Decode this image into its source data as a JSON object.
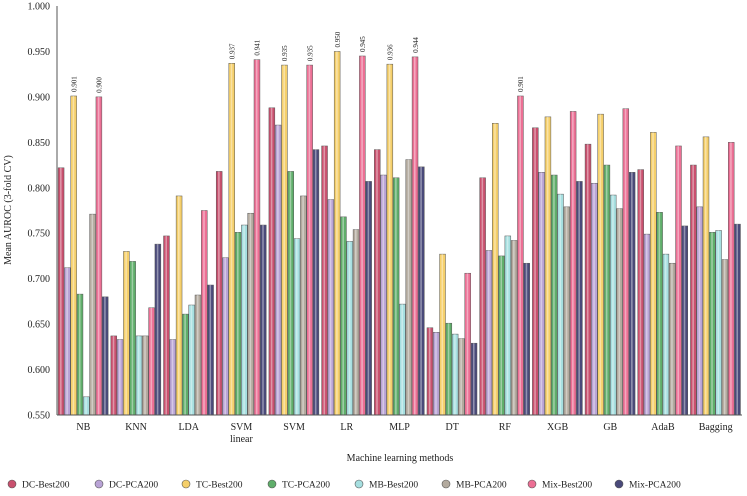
{
  "chart_data": {
    "type": "bar",
    "title": "",
    "xlabel": "Machine learning methods",
    "ylabel": "Mean AUROC (3-fold CV)",
    "ylim": [
      0.55,
      1.0
    ],
    "yticks": [
      "0.550",
      "0.600",
      "0.650",
      "0.700",
      "0.750",
      "0.800",
      "0.850",
      "0.900",
      "0.950",
      "1.000"
    ],
    "grid": false,
    "legend_position": "bottom",
    "categories": [
      [
        "NB"
      ],
      [
        "KNN"
      ],
      [
        "LDA"
      ],
      [
        "SVM",
        "linear"
      ],
      [
        "SVM"
      ],
      [
        "LR"
      ],
      [
        "MLP"
      ],
      [
        "DT"
      ],
      [
        "RF"
      ],
      [
        "XGB"
      ],
      [
        "GB"
      ],
      [
        "AdaB"
      ],
      [
        "Bagging"
      ]
    ],
    "data_label_threshold": 0.9,
    "series": [
      {
        "name": "DC-Best200",
        "color": "#c9506e",
        "values": [
          0.822,
          0.637,
          0.747,
          0.818,
          0.888,
          0.846,
          0.842,
          0.646,
          0.811,
          0.866,
          0.848,
          0.82,
          0.825
        ]
      },
      {
        "name": "DC-PCA200",
        "color": "#b9a3d6",
        "values": [
          0.712,
          0.633,
          0.633,
          0.723,
          0.869,
          0.787,
          0.814,
          0.641,
          0.731,
          0.817,
          0.805,
          0.749,
          0.779
        ]
      },
      {
        "name": "TC-Best200",
        "color": "#f5cf6a",
        "values": [
          0.901,
          0.73,
          0.791,
          0.937,
          0.935,
          0.95,
          0.936,
          0.727,
          0.871,
          0.878,
          0.881,
          0.861,
          0.856
        ]
      },
      {
        "name": "TC-PCA200",
        "color": "#5fae6a",
        "values": [
          0.683,
          0.719,
          0.661,
          0.751,
          0.818,
          0.768,
          0.811,
          0.651,
          0.725,
          0.814,
          0.825,
          0.773,
          0.751
        ]
      },
      {
        "name": "MB-Best200",
        "color": "#a6dfe0",
        "values": [
          0.57,
          0.637,
          0.671,
          0.759,
          0.744,
          0.741,
          0.672,
          0.639,
          0.747,
          0.793,
          0.792,
          0.727,
          0.753
        ]
      },
      {
        "name": "MB-PCA200",
        "color": "#b3aa9e",
        "values": [
          0.771,
          0.637,
          0.682,
          0.772,
          0.791,
          0.754,
          0.831,
          0.634,
          0.742,
          0.779,
          0.777,
          0.717,
          0.721
        ]
      },
      {
        "name": "Mix-Best200",
        "color": "#ec6f94",
        "values": [
          0.9,
          0.668,
          0.775,
          0.941,
          0.935,
          0.945,
          0.944,
          0.706,
          0.901,
          0.884,
          0.887,
          0.846,
          0.85
        ]
      },
      {
        "name": "Mix-PCA200",
        "color": "#4a4a7a",
        "values": [
          0.68,
          0.738,
          0.693,
          0.759,
          0.842,
          0.807,
          0.823,
          0.629,
          0.717,
          0.807,
          0.817,
          0.758,
          0.76
        ]
      }
    ]
  }
}
